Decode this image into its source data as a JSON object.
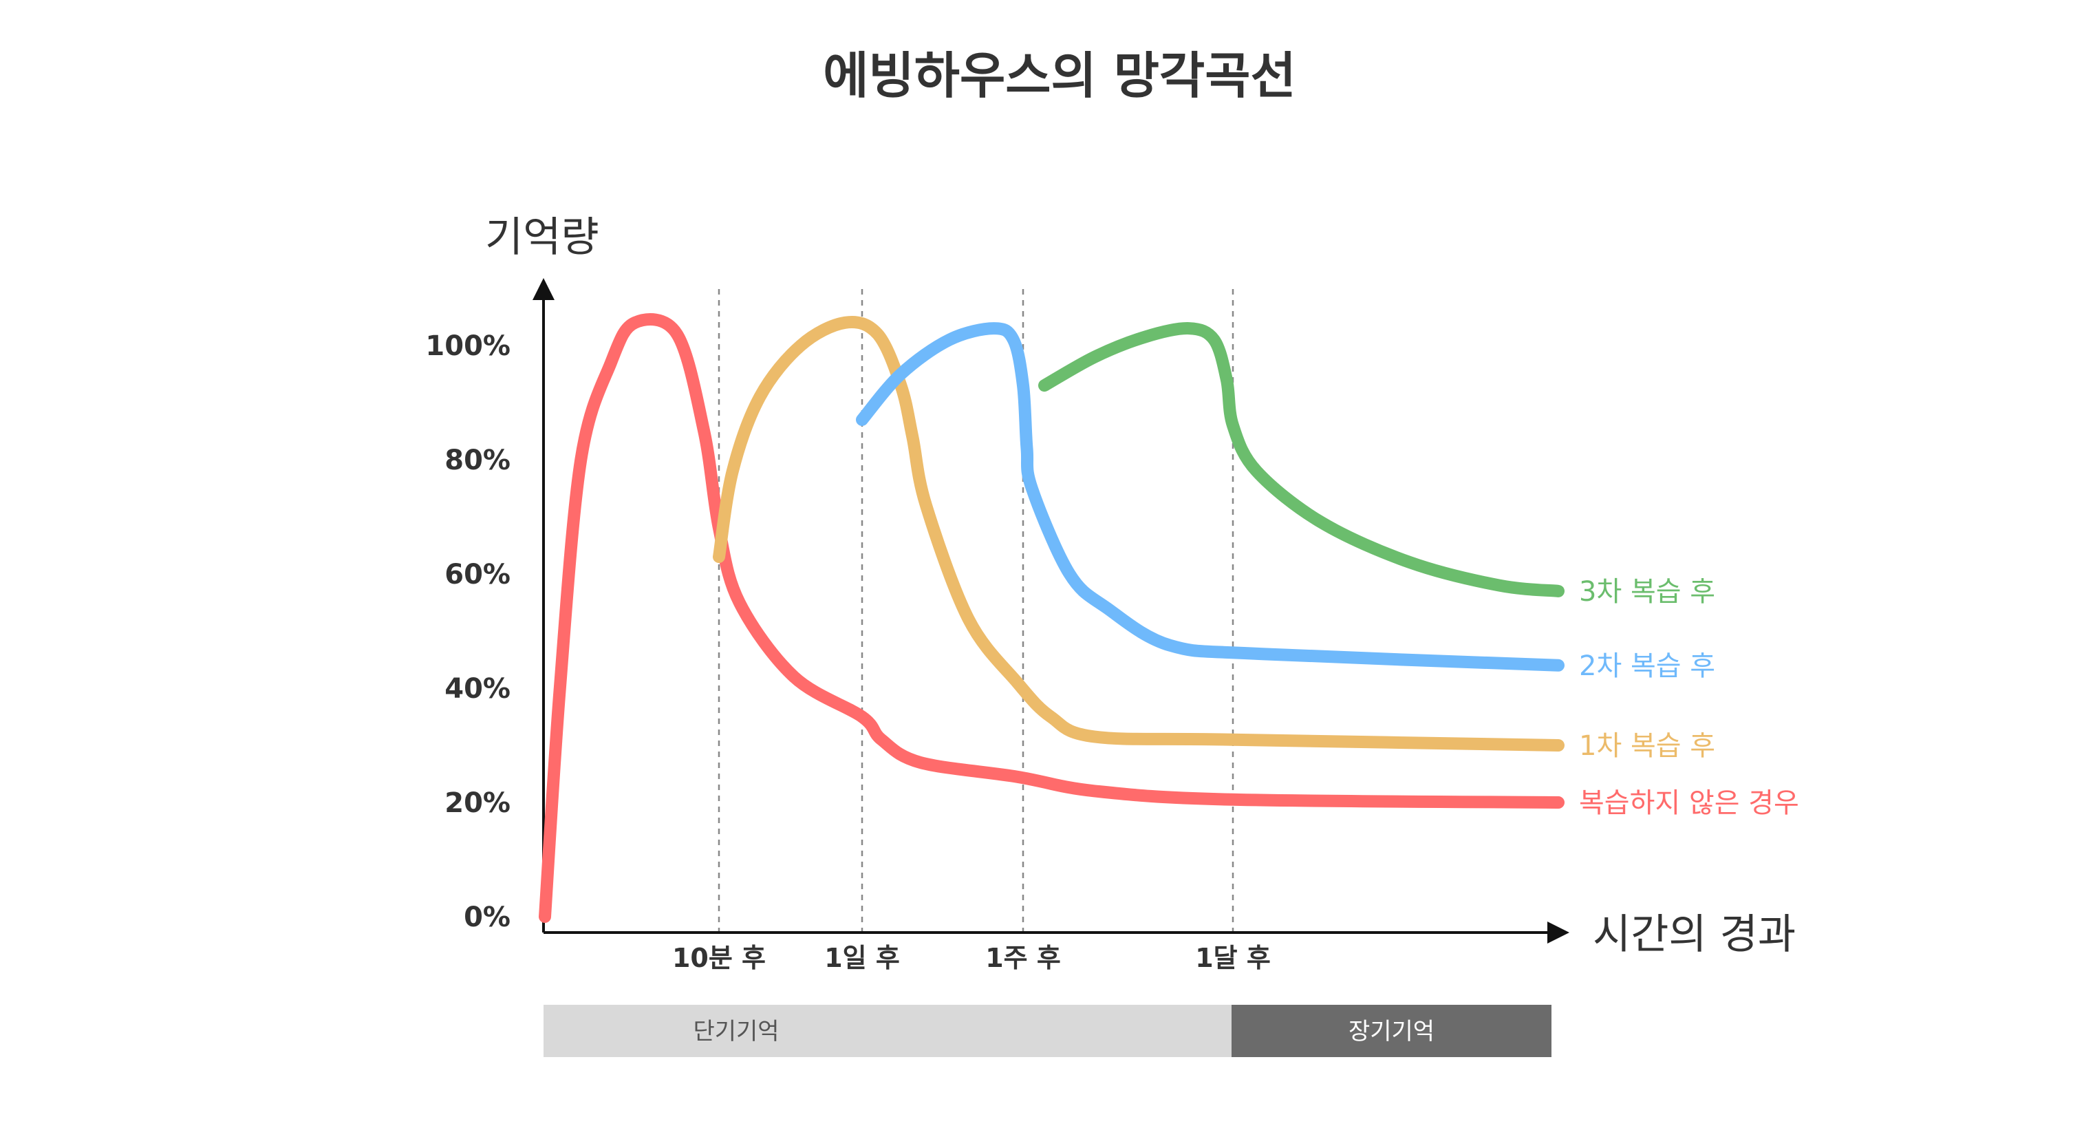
{
  "chart_data": {
    "type": "line",
    "title": "에빙하우스의 망각곡선",
    "ylabel": "기억량",
    "xlabel": "시간의 경과",
    "yticks": [
      "0%",
      "20%",
      "40%",
      "60%",
      "80%",
      "100%"
    ],
    "ylim": [
      0,
      100
    ],
    "grid": false,
    "xmarkers": [
      {
        "label": "10분 후"
      },
      {
        "label": "1일 후"
      },
      {
        "label": "1주 후"
      },
      {
        "label": "1달 후"
      }
    ],
    "series": [
      {
        "name": "복습하지 않은 경우",
        "color": "#ff6b6b",
        "points": [
          [
            0,
            0
          ],
          [
            0.05,
            40
          ],
          [
            0.12,
            80
          ],
          [
            0.22,
            97
          ],
          [
            0.3,
            104
          ],
          [
            0.44,
            102
          ],
          [
            0.53,
            85
          ],
          [
            0.58,
            68
          ],
          [
            0.64,
            55
          ],
          [
            0.8,
            42
          ],
          [
            1.0,
            35
          ],
          [
            1.1,
            31
          ],
          [
            1.3,
            27
          ],
          [
            1.8,
            24.5
          ],
          [
            2.4,
            22
          ],
          [
            3.5,
            20.5
          ],
          [
            4.6,
            20
          ]
        ]
      },
      {
        "name": "1차 복습 후",
        "color": "#ecbb6a",
        "points": [
          [
            0.58,
            63
          ],
          [
            0.62,
            78
          ],
          [
            0.7,
            91
          ],
          [
            0.82,
            100
          ],
          [
            0.95,
            104
          ],
          [
            1.08,
            102
          ],
          [
            1.2,
            93
          ],
          [
            1.26,
            84
          ],
          [
            1.33,
            72
          ],
          [
            1.55,
            52
          ],
          [
            1.8,
            41
          ],
          [
            2.05,
            35
          ],
          [
            2.4,
            31.5
          ],
          [
            3.5,
            31
          ],
          [
            4.6,
            30
          ]
        ]
      },
      {
        "name": "2차 복습 후",
        "color": "#6fb9fb",
        "points": [
          [
            1.0,
            87
          ],
          [
            1.2,
            95
          ],
          [
            1.45,
            101
          ],
          [
            1.68,
            103
          ],
          [
            1.78,
            101
          ],
          [
            1.83,
            93
          ],
          [
            1.86,
            82
          ],
          [
            1.9,
            75
          ],
          [
            2.2,
            60
          ],
          [
            2.5,
            54
          ],
          [
            3.0,
            47.5
          ],
          [
            3.6,
            46
          ],
          [
            4.6,
            44
          ]
        ]
      },
      {
        "name": "3차 복습 후",
        "color": "#6bbd6d",
        "points": [
          [
            2.0,
            93
          ],
          [
            2.4,
            98
          ],
          [
            2.8,
            101.5
          ],
          [
            3.15,
            103
          ],
          [
            3.35,
            101
          ],
          [
            3.45,
            94
          ],
          [
            3.5,
            86
          ],
          [
            3.58,
            78
          ],
          [
            3.8,
            69
          ],
          [
            4.1,
            62
          ],
          [
            4.4,
            58
          ],
          [
            4.6,
            57
          ]
        ]
      }
    ],
    "phases": [
      {
        "label": "단기기억",
        "color": "#d9d9d9",
        "text_color": "#555555"
      },
      {
        "label": "장기기억",
        "color": "#6b6b6b",
        "text_color": "#ffffff"
      }
    ]
  }
}
